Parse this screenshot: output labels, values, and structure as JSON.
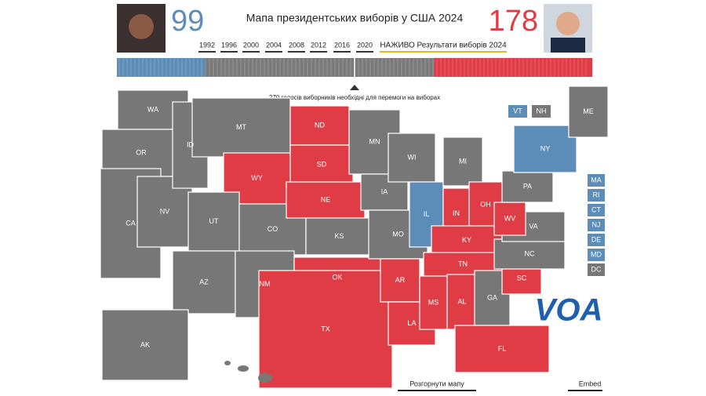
{
  "header": {
    "dem_votes": 99,
    "rep_votes": 178,
    "title": "Мапа президентських виборів у США 2024",
    "dem_color": "#5b8db8",
    "rep_color": "#e03c45"
  },
  "years": [
    "1992",
    "1996",
    "2000",
    "2004",
    "2008",
    "2012",
    "2016",
    "2020"
  ],
  "live_label": "НАЖИВО Результати виборів 2024",
  "bar_caption": "270 голосів виборників необхідні для перемоги на виборах",
  "states": [
    {
      "label": "WA",
      "color": "#777777"
    },
    {
      "label": "OR",
      "color": "#777777"
    },
    {
      "label": "CA",
      "color": "#777777"
    },
    {
      "label": "NV",
      "color": "#777777"
    },
    {
      "label": "ID",
      "color": "#777777"
    },
    {
      "label": "MT",
      "color": "#777777"
    },
    {
      "label": "WY",
      "color": "#e03c45"
    },
    {
      "label": "UT",
      "color": "#777777"
    },
    {
      "label": "CO",
      "color": "#777777"
    },
    {
      "label": "AZ",
      "color": "#777777"
    },
    {
      "label": "NM",
      "color": "#777777"
    },
    {
      "label": "ND",
      "color": "#e03c45"
    },
    {
      "label": "SD",
      "color": "#e03c45"
    },
    {
      "label": "NE",
      "color": "#e03c45"
    },
    {
      "label": "KS",
      "color": "#777777"
    },
    {
      "label": "OK",
      "color": "#e03c45"
    },
    {
      "label": "TX",
      "color": "#e03c45"
    },
    {
      "label": "MN",
      "color": "#777777"
    },
    {
      "label": "IA",
      "color": "#777777"
    },
    {
      "label": "MO",
      "color": "#777777"
    },
    {
      "label": "AR",
      "color": "#e03c45"
    },
    {
      "label": "LA",
      "color": "#e03c45"
    },
    {
      "label": "WI",
      "color": "#777777"
    },
    {
      "label": "IL",
      "color": "#5b8db8"
    },
    {
      "label": "MI",
      "color": "#777777"
    },
    {
      "label": "IN",
      "color": "#e03c45"
    },
    {
      "label": "OH",
      "color": "#e03c45"
    },
    {
      "label": "KY",
      "color": "#e03c45"
    },
    {
      "label": "TN",
      "color": "#e03c45"
    },
    {
      "label": "MS",
      "color": "#e03c45"
    },
    {
      "label": "AL",
      "color": "#e03c45"
    },
    {
      "label": "GA",
      "color": "#777777"
    },
    {
      "label": "FL",
      "color": "#e03c45"
    },
    {
      "label": "SC",
      "color": "#e03c45"
    },
    {
      "label": "NC",
      "color": "#777777"
    },
    {
      "label": "VA",
      "color": "#777777"
    },
    {
      "label": "WV",
      "color": "#e03c45"
    },
    {
      "label": "PA",
      "color": "#777777"
    },
    {
      "label": "NY",
      "color": "#5b8db8"
    },
    {
      "label": "ME",
      "color": "#777777"
    },
    {
      "label": "AK",
      "color": "#777777"
    }
  ],
  "small_states_top": [
    {
      "label": "VT",
      "color": "#5b8db8"
    },
    {
      "label": "NH",
      "color": "#777777"
    }
  ],
  "small_states_side": [
    {
      "label": "MA",
      "color": "#5b8db8"
    },
    {
      "label": "RI",
      "color": "#5b8db8"
    },
    {
      "label": "CT",
      "color": "#5b8db8"
    },
    {
      "label": "NJ",
      "color": "#5b8db8"
    },
    {
      "label": "DE",
      "color": "#5b8db8"
    },
    {
      "label": "MD",
      "color": "#5b8db8"
    },
    {
      "label": "DC",
      "color": "#777777"
    }
  ],
  "logo": "VOA",
  "expand_button": "Розгорнути мапу",
  "embed_button": "Embed"
}
